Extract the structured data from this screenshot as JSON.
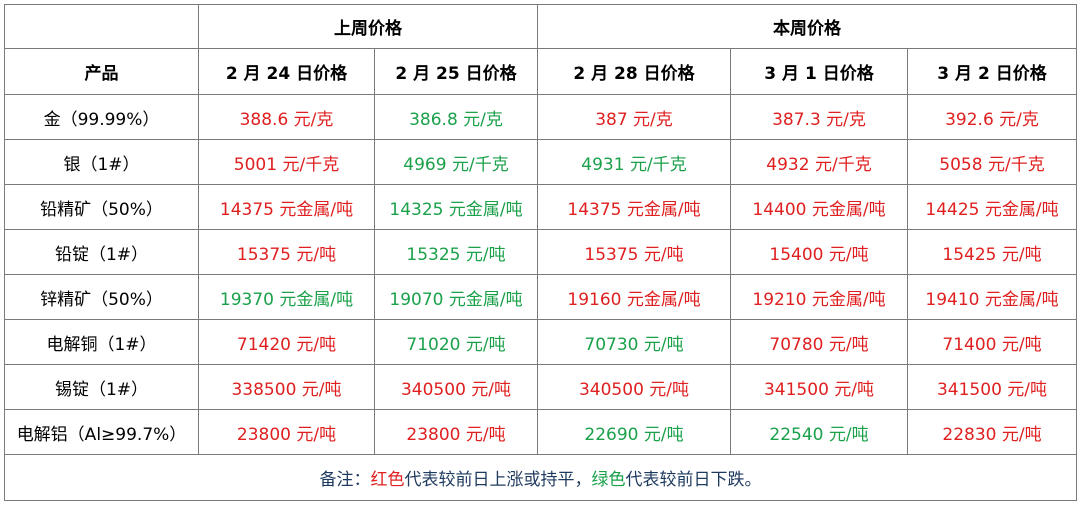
{
  "header": {
    "group_last_week": "上周价格",
    "group_this_week": "本周价格",
    "col_product": "产品",
    "dates": [
      "2 月 24 日价格",
      "2 月 25 日价格",
      "2 月 28 日价格",
      "3 月 1 日价格",
      "3 月 2 日价格"
    ]
  },
  "colors": {
    "up": "#e02020",
    "down": "#1aa14a",
    "note_text": "#1f3a5f"
  },
  "rows": [
    {
      "product": "金（99.99%）",
      "cells": [
        {
          "text": "388.6 元/克",
          "trend": "up"
        },
        {
          "text": "386.8 元/克",
          "trend": "down"
        },
        {
          "text": "387 元/克",
          "trend": "up"
        },
        {
          "text": "387.3 元/克",
          "trend": "up"
        },
        {
          "text": "392.6 元/克",
          "trend": "up"
        }
      ]
    },
    {
      "product": "银（1#）",
      "cells": [
        {
          "text": "5001 元/千克",
          "trend": "up"
        },
        {
          "text": "4969 元/千克",
          "trend": "down"
        },
        {
          "text": "4931 元/千克",
          "trend": "down"
        },
        {
          "text": "4932 元/千克",
          "trend": "up"
        },
        {
          "text": "5058 元/千克",
          "trend": "up"
        }
      ]
    },
    {
      "product": "铅精矿（50%）",
      "cells": [
        {
          "text": "14375 元金属/吨",
          "trend": "up"
        },
        {
          "text": "14325 元金属/吨",
          "trend": "down"
        },
        {
          "text": "14375 元金属/吨",
          "trend": "up"
        },
        {
          "text": "14400 元金属/吨",
          "trend": "up"
        },
        {
          "text": "14425 元金属/吨",
          "trend": "up"
        }
      ]
    },
    {
      "product": "铅锭（1#）",
      "cells": [
        {
          "text": "15375 元/吨",
          "trend": "up"
        },
        {
          "text": "15325 元/吨",
          "trend": "down"
        },
        {
          "text": "15375 元/吨",
          "trend": "up"
        },
        {
          "text": "15400 元/吨",
          "trend": "up"
        },
        {
          "text": "15425 元/吨",
          "trend": "up"
        }
      ]
    },
    {
      "product": "锌精矿（50%）",
      "cells": [
        {
          "text": "19370 元金属/吨",
          "trend": "down"
        },
        {
          "text": "19070 元金属/吨",
          "trend": "down"
        },
        {
          "text": "19160 元金属/吨",
          "trend": "up"
        },
        {
          "text": "19210 元金属/吨",
          "trend": "up"
        },
        {
          "text": "19410 元金属/吨",
          "trend": "up"
        }
      ]
    },
    {
      "product": "电解铜（1#）",
      "cells": [
        {
          "text": "71420 元/吨",
          "trend": "up"
        },
        {
          "text": "71020 元/吨",
          "trend": "down"
        },
        {
          "text": "70730 元/吨",
          "trend": "down"
        },
        {
          "text": "70780 元/吨",
          "trend": "up"
        },
        {
          "text": "71400 元/吨",
          "trend": "up"
        }
      ]
    },
    {
      "product": "锡锭（1#）",
      "cells": [
        {
          "text": "338500 元/吨",
          "trend": "up"
        },
        {
          "text": "340500 元/吨",
          "trend": "up"
        },
        {
          "text": "340500 元/吨",
          "trend": "up"
        },
        {
          "text": "341500 元/吨",
          "trend": "up"
        },
        {
          "text": "341500 元/吨",
          "trend": "up"
        }
      ]
    },
    {
      "product": "电解铝（Al≥99.7%）",
      "cells": [
        {
          "text": "23800 元/吨",
          "trend": "up"
        },
        {
          "text": "23800 元/吨",
          "trend": "up"
        },
        {
          "text": "22690 元/吨",
          "trend": "down"
        },
        {
          "text": "22540 元/吨",
          "trend": "down"
        },
        {
          "text": "22830 元/吨",
          "trend": "up"
        }
      ]
    }
  ],
  "note": {
    "prefix": "备注：",
    "red_word": "红色",
    "red_desc": "代表较前日上涨或持平，",
    "green_word": "绿色",
    "green_desc": "代表较前日下跌。"
  }
}
